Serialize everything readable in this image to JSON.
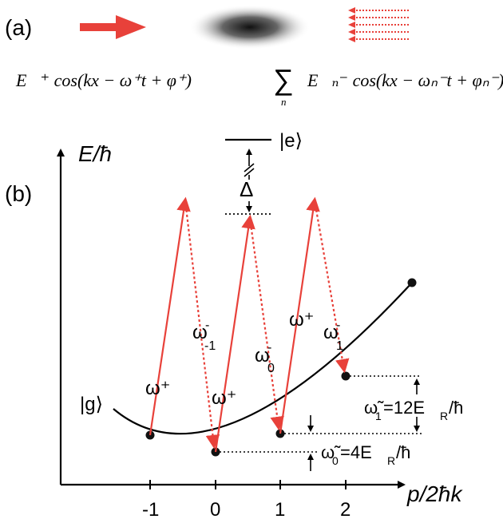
{
  "panel_a": {
    "label": "(a)",
    "field_forward": "E⃗⁺ cos(kx − ω⁺t + φ⁺)",
    "sum_symbol": "∑",
    "sum_index": "n",
    "field_backward": "E⃗ₙ⁻ cos(kx − ωₙ⁻t + φₙ⁻)"
  },
  "panel_b": {
    "label": "(b)",
    "y_axis_label": "E/ħ",
    "x_axis_label": "p/2ħk",
    "x_ticks": [
      "-1",
      "0",
      "1",
      "2"
    ],
    "excited_state": "|e⟩",
    "ground_state": "|g⟩",
    "detuning": "Δ",
    "transition_labels": {
      "up_left": "ω⁺",
      "down_left": "ω",
      "down_left_sub": "-1",
      "down_left_sup": "-",
      "up_mid": "ω⁺",
      "down_mid": "ω",
      "down_mid_sub": "0",
      "down_mid_sup": "-",
      "up_right": "ω⁺",
      "down_right": "ω",
      "down_right_sub": "1",
      "down_right_sup": "-"
    },
    "omega_tilde_1": "ω̃",
    "omega_tilde_1_sub": "1",
    "omega_tilde_1_rhs": "=12E",
    "omega_tilde_1_R": "R",
    "omega_tilde_1_end": "/ħ",
    "omega_tilde_0": "ω̃",
    "omega_tilde_0_sub": "0",
    "omega_tilde_0_rhs": "=4E",
    "omega_tilde_0_R": "R",
    "omega_tilde_0_end": "/ħ"
  },
  "colors": {
    "laser_red": "#e8413a",
    "axis": "#000000"
  }
}
